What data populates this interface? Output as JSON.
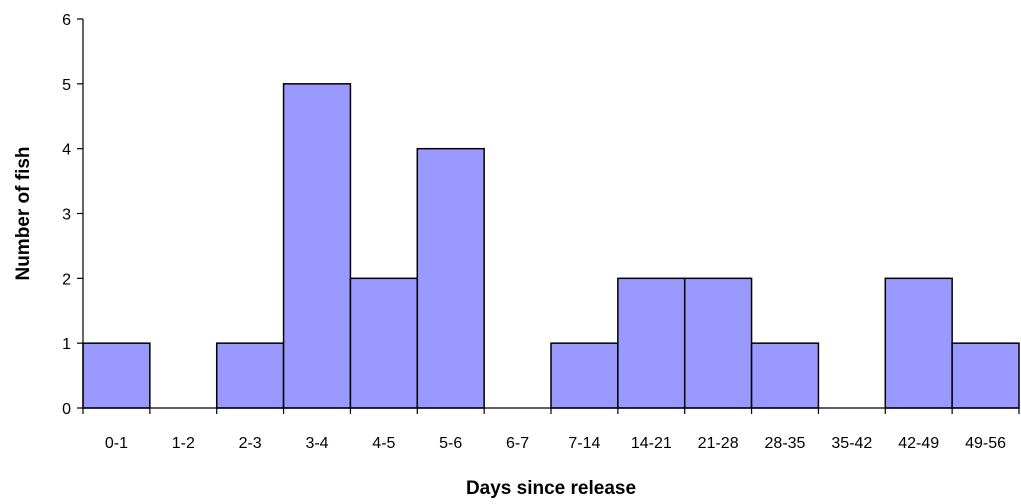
{
  "chart_data": {
    "type": "bar",
    "title": "",
    "xlabel": "Days since release",
    "ylabel": "Number of fish",
    "categories": [
      "0-1",
      "1-2",
      "2-3",
      "3-4",
      "4-5",
      "5-6",
      "6-7",
      "7-14",
      "14-21",
      "21-28",
      "28-35",
      "35-42",
      "42-49",
      "49-56"
    ],
    "values": [
      1,
      0,
      1,
      5,
      2,
      4,
      0,
      1,
      2,
      2,
      1,
      0,
      2,
      1
    ],
    "ylim": [
      0,
      6
    ],
    "yticks": [
      0,
      1,
      2,
      3,
      4,
      5,
      6
    ],
    "grid": false,
    "legend": "none",
    "bar_color": "#9999ff",
    "bar_edge_color": "#000000"
  }
}
